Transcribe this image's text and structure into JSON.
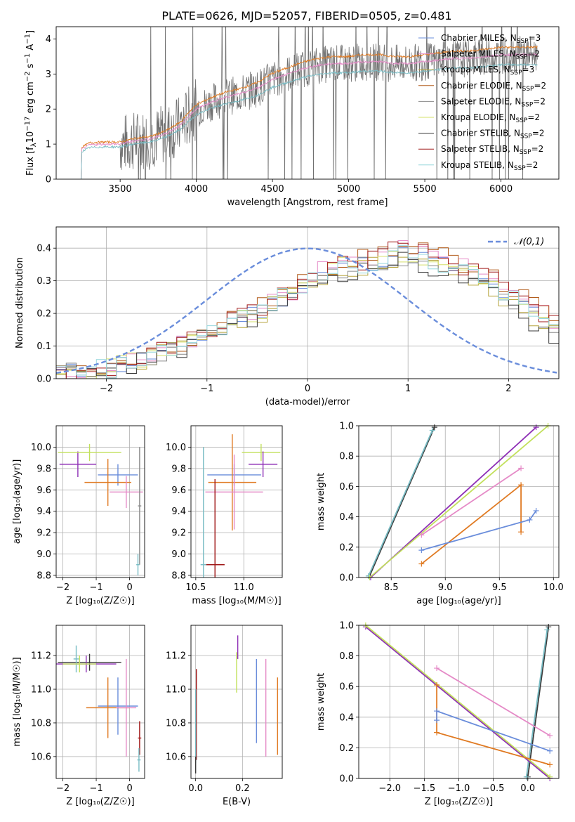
{
  "title": "PLATE=0626, MJD=52057, FIBERID=0505, z=0.481",
  "colors": {
    "Chabrier MILES": "#6a8ddb",
    "Salpeter MILES": "#e58ac7",
    "Kroupa MILES": "#b5a33a",
    "Chabrier ELODIE": "#b25c1c",
    "Salpeter ELODIE": "#8a8a8a",
    "Kroupa ELODIE": "#d5e06a",
    "Chabrier STELIB": "#3a3a3a",
    "Salpeter STELIB": "#a01818",
    "Kroupa STELIB": "#94d6dc",
    "orange": "#e07a22",
    "purple": "#8e2fb6",
    "lime": "#c2e05c",
    "teal": "#78bcc4",
    "data": "#707070"
  },
  "chart_data": [
    {
      "id": "spectrum",
      "type": "line",
      "xlabel": "wavelength [Angstrom, rest frame]",
      "ylabel_main": "Flux [f",
      "ylabel_sub": "λ",
      "ylabel_rest": "10",
      "ylabel_exp": "−17",
      "ylabel_tail": " erg cm",
      "ylabel_exp2": "−2",
      "ylabel_tail2": " s",
      "ylabel_exp3": "−1",
      "ylabel_tail3": " A",
      "ylabel_exp4": "−1",
      "ylabel_end": "]",
      "xlim": [
        3080,
        6380
      ],
      "ylim": [
        0,
        4.35
      ],
      "xticks": [
        3500,
        4000,
        4500,
        5000,
        5500,
        6000
      ],
      "yticks": [
        0,
        1,
        2,
        3,
        4
      ],
      "legend_placement": "right",
      "legend": [
        {
          "pre": "Chabrier MILES, N",
          "sub": "SSP",
          "post": "=3",
          "color": "#6a8ddb"
        },
        {
          "pre": "Salpeter MILES, N",
          "sub": "SSP",
          "post": "=2",
          "color": "#e58ac7"
        },
        {
          "pre": "Kroupa MILES, N",
          "sub": "SSP",
          "post": "=3",
          "color": "#b5a33a"
        },
        {
          "pre": "Chabrier ELODIE, N",
          "sub": "SSP",
          "post": "=2",
          "color": "#b25c1c"
        },
        {
          "pre": "Salpeter ELODIE, N",
          "sub": "SSP",
          "post": "=2",
          "color": "#8a8a8a"
        },
        {
          "pre": "Kroupa ELODIE, N",
          "sub": "SSP",
          "post": "=2",
          "color": "#d5e06a"
        },
        {
          "pre": "Chabrier STELIB, N",
          "sub": "SSP",
          "post": "=2",
          "color": "#3a3a3a"
        },
        {
          "pre": "Salpeter STELIB, N",
          "sub": "SSP",
          "post": "=2",
          "color": "#a01818"
        },
        {
          "pre": "Kroupa STELIB, N",
          "sub": "SSP",
          "post": "=2",
          "color": "#94d6dc"
        }
      ],
      "model_continuum": [
        [
          3240,
          0
        ],
        [
          3245,
          0.85
        ],
        [
          3300,
          0.98
        ],
        [
          3400,
          1.0
        ],
        [
          3500,
          1.0
        ],
        [
          3600,
          1.1
        ],
        [
          3700,
          1.15
        ],
        [
          3800,
          1.3
        ],
        [
          3900,
          1.55
        ],
        [
          3950,
          1.8
        ],
        [
          4000,
          2.0
        ],
        [
          4100,
          2.2
        ],
        [
          4200,
          2.35
        ],
        [
          4300,
          2.45
        ],
        [
          4400,
          2.6
        ],
        [
          4500,
          2.85
        ],
        [
          4600,
          3.0
        ],
        [
          4700,
          3.15
        ],
        [
          4800,
          3.25
        ],
        [
          4900,
          3.3
        ],
        [
          5000,
          3.3
        ],
        [
          5100,
          3.35
        ],
        [
          5200,
          3.35
        ],
        [
          5300,
          3.3
        ],
        [
          5400,
          3.3
        ],
        [
          5500,
          3.35
        ],
        [
          5600,
          3.4
        ],
        [
          5700,
          3.45
        ],
        [
          5800,
          3.45
        ],
        [
          5900,
          3.5
        ],
        [
          6000,
          3.55
        ],
        [
          6100,
          3.55
        ],
        [
          6240,
          3.55
        ]
      ],
      "model_scales": {
        "upper": 1.06,
        "lower": 0.92
      },
      "data_range": [
        3500,
        6240
      ]
    },
    {
      "id": "residuals",
      "type": "bar",
      "xlabel": "(data-model)/error",
      "ylabel": "Normed distribution",
      "xlim": [
        -2.5,
        2.5
      ],
      "ylim": [
        0,
        0.465
      ],
      "xticks": [
        -2,
        -1,
        0,
        1,
        2
      ],
      "yticks": [
        0.0,
        0.1,
        0.2,
        0.3,
        0.4
      ],
      "legend_label": "𝒩(0,1)",
      "legend_placement": "top-right",
      "bin_width": 0.1,
      "base_histogram": [
        0.02,
        0.02,
        0.02,
        0.02,
        0.03,
        0.03,
        0.04,
        0.05,
        0.06,
        0.07,
        0.08,
        0.09,
        0.1,
        0.12,
        0.13,
        0.15,
        0.16,
        0.18,
        0.19,
        0.2,
        0.21,
        0.23,
        0.25,
        0.26,
        0.28,
        0.3,
        0.32,
        0.33,
        0.34,
        0.35,
        0.35,
        0.36,
        0.37,
        0.38,
        0.38,
        0.38,
        0.37,
        0.36,
        0.35,
        0.34,
        0.33,
        0.31,
        0.3,
        0.28,
        0.26,
        0.24,
        0.22,
        0.2,
        0.18,
        0.16
      ],
      "series_offsets": [
        0.0,
        0.02,
        -0.02,
        0.03,
        -0.01,
        0.01,
        -0.03,
        0.02,
        0.0
      ]
    },
    {
      "id": "age-Z",
      "type": "scatter",
      "xlabel": "Z [log₁₀(Z/Z☉)]",
      "ylabel": "age  [log₁₀(age/yr)]",
      "xlim": [
        -2.2,
        0.45
      ],
      "ylim": [
        8.78,
        10.2
      ],
      "xticks": [
        -2,
        -1,
        0
      ],
      "yticks": [
        8.8,
        9.0,
        9.2,
        9.4,
        9.6,
        9.8,
        10.0
      ],
      "points": [
        {
          "x": -1.55,
          "y": 9.84,
          "dx": 0.55,
          "dy": 0.12,
          "color": "#8e2fb6"
        },
        {
          "x": -1.2,
          "y": 9.95,
          "dx": 0.95,
          "dy": 0.08,
          "color": "#c2e05c"
        },
        {
          "x": -0.35,
          "y": 9.74,
          "dx": 0.6,
          "dy": 0.1,
          "color": "#6a8ddb"
        },
        {
          "x": -0.65,
          "y": 9.67,
          "dx": 0.7,
          "dy": 0.22,
          "color": "#e07a22"
        },
        {
          "x": -0.1,
          "y": 9.58,
          "dx": 0.5,
          "dy": 0.15,
          "color": "#e58ac7"
        },
        {
          "x": 0.3,
          "y": 9.45,
          "dx": 0.05,
          "dy": 0.55,
          "color": "#8a8a8a"
        },
        {
          "x": 0.25,
          "y": 8.9,
          "dx": 0.05,
          "dy": 0.1,
          "color": "#78bcc4"
        }
      ]
    },
    {
      "id": "age-mass",
      "type": "scatter",
      "xlabel": "mass [log₁₀(M/M☉)]",
      "xlim": [
        10.45,
        11.4
      ],
      "ylim": [
        8.78,
        10.2
      ],
      "xticks": [
        10.5,
        11.0
      ],
      "yticks": [
        8.8,
        9.0,
        9.2,
        9.4,
        9.6,
        9.8,
        10.0
      ],
      "points": [
        {
          "x": 11.18,
          "y": 9.95,
          "dx": 0.2,
          "dy": 0.08,
          "color": "#c2e05c"
        },
        {
          "x": 11.2,
          "y": 9.84,
          "dx": 0.15,
          "dy": 0.12,
          "color": "#8e2fb6"
        },
        {
          "x": 10.9,
          "y": 9.74,
          "dx": 0.28,
          "dy": 0.1,
          "color": "#6a8ddb"
        },
        {
          "x": 10.88,
          "y": 9.67,
          "dx": 0.25,
          "dy": 0.45,
          "color": "#e07a22"
        },
        {
          "x": 10.9,
          "y": 9.58,
          "dx": 0.3,
          "dy": 0.35,
          "color": "#e58ac7"
        },
        {
          "x": 10.7,
          "y": 8.9,
          "dx": 0.1,
          "dy": 0.8,
          "color": "#a01818"
        },
        {
          "x": 10.58,
          "y": 8.9,
          "dx": 0.03,
          "dy": 1.1,
          "color": "#78bcc4"
        }
      ]
    },
    {
      "id": "weight-age",
      "type": "line",
      "xlabel": "age  [log₁₀(age/yr)]",
      "ylabel": "mass weight",
      "xlim": [
        8.2,
        10.05
      ],
      "ylim": [
        0,
        1.0
      ],
      "xticks": [
        8.5,
        9.0,
        9.5,
        10.0
      ],
      "yticks": [
        0.0,
        0.2,
        0.4,
        0.6,
        0.8,
        1.0
      ],
      "series": [
        {
          "color": "#3a3a3a",
          "x": [
            8.3,
            8.9
          ],
          "y": [
            0.01,
            0.99
          ]
        },
        {
          "color": "#78bcc4",
          "x": [
            8.29,
            8.88
          ],
          "y": [
            0.01,
            0.97
          ]
        },
        {
          "color": "#8e2fb6",
          "x": [
            8.31,
            9.84
          ],
          "y": [
            0.0,
            0.99
          ]
        },
        {
          "color": "#c2e05c",
          "x": [
            8.3,
            9.95
          ],
          "y": [
            0.0,
            1.0
          ]
        },
        {
          "color": "#e58ac7",
          "x": [
            8.78,
            9.7
          ],
          "y": [
            0.28,
            0.72
          ]
        },
        {
          "color": "#e07a22",
          "x": [
            8.78,
            9.7,
            9.7
          ],
          "y": [
            0.09,
            0.61,
            0.3
          ]
        },
        {
          "color": "#6a8ddb",
          "x": [
            8.78,
            9.78,
            9.84
          ],
          "y": [
            0.18,
            0.38,
            0.44
          ]
        }
      ]
    },
    {
      "id": "mass-Z",
      "type": "scatter",
      "xlabel": "Z [log₁₀(Z/Z☉)]",
      "ylabel": "mass [log₁₀(M/M☉)]",
      "xlim": [
        -2.2,
        0.45
      ],
      "ylim": [
        10.47,
        11.38
      ],
      "xticks": [
        -2,
        -1,
        0
      ],
      "yticks": [
        10.6,
        10.8,
        11.0,
        11.2
      ],
      "points": [
        {
          "x": -1.2,
          "y": 11.16,
          "dx": 0.95,
          "dy": 0.05,
          "color": "#3a3a3a"
        },
        {
          "x": -1.3,
          "y": 11.15,
          "dx": 0.9,
          "dy": 0.05,
          "color": "#8e2fb6"
        },
        {
          "x": -1.6,
          "y": 11.18,
          "dx": 0.08,
          "dy": 0.08,
          "color": "#78bcc4"
        },
        {
          "x": -1.5,
          "y": 11.15,
          "dx": 0.5,
          "dy": 0.05,
          "color": "#c2e05c"
        },
        {
          "x": -0.35,
          "y": 10.9,
          "dx": 0.6,
          "dy": 0.17,
          "color": "#6a8ddb"
        },
        {
          "x": -0.65,
          "y": 10.89,
          "dx": 0.65,
          "dy": 0.18,
          "color": "#e07a22"
        },
        {
          "x": -0.1,
          "y": 10.89,
          "dx": 0.3,
          "dy": 0.29,
          "color": "#e58ac7"
        },
        {
          "x": 0.3,
          "y": 10.71,
          "dx": 0.05,
          "dy": 0.1,
          "color": "#a01818"
        },
        {
          "x": 0.28,
          "y": 10.58,
          "dx": 0.05,
          "dy": 0.07,
          "color": "#78bcc4"
        }
      ]
    },
    {
      "id": "mass-EBV",
      "type": "scatter",
      "xlabel": "E(B-V)",
      "xlim": [
        -0.02,
        0.37
      ],
      "ylim": [
        10.47,
        11.38
      ],
      "xticks": [
        0.0,
        0.2
      ],
      "yticks": [
        10.6,
        10.8,
        11.0,
        11.2
      ],
      "points": [
        {
          "x": 0.18,
          "y": 11.25,
          "dx": 0,
          "dy": 0.07,
          "color": "#8e2fb6"
        },
        {
          "x": 0.175,
          "y": 11.1,
          "dx": 0,
          "dy": 0.12,
          "color": "#c2e05c"
        },
        {
          "x": 0.26,
          "y": 10.93,
          "dx": 0,
          "dy": 0.25,
          "color": "#6a8ddb"
        },
        {
          "x": 0.3,
          "y": 10.89,
          "dx": 0,
          "dy": 0.29,
          "color": "#e58ac7"
        },
        {
          "x": 0.35,
          "y": 10.84,
          "dx": 0,
          "dy": 0.23,
          "color": "#e07a22"
        },
        {
          "x": 0.003,
          "y": 10.85,
          "dx": 0,
          "dy": 0.27,
          "color": "#a01818"
        },
        {
          "x": 0.0,
          "y": 10.78,
          "dx": 0,
          "dy": 0.22,
          "color": "#78bcc4"
        },
        {
          "x": 0.0,
          "y": 10.55,
          "dx": 0,
          "dy": 0.05,
          "color": "#3a3a3a"
        }
      ]
    },
    {
      "id": "weight-Z",
      "type": "line",
      "xlabel": "Z [log₁₀(Z/Z☉)]",
      "ylabel": "mass weight",
      "xlim": [
        -2.45,
        0.45
      ],
      "ylim": [
        0,
        1.0
      ],
      "xticks": [
        -2.0,
        -1.5,
        -1.0,
        -0.5,
        0.0
      ],
      "yticks": [
        0.0,
        0.2,
        0.4,
        0.6,
        0.8,
        1.0
      ],
      "series": [
        {
          "color": "#3a3a3a",
          "x": [
            0.0,
            0.3
          ],
          "y": [
            0.01,
            0.99
          ]
        },
        {
          "color": "#78bcc4",
          "x": [
            -0.02,
            0.28
          ],
          "y": [
            0.01,
            0.97
          ]
        },
        {
          "color": "#8e2fb6",
          "x": [
            -2.35,
            0.32
          ],
          "y": [
            0.99,
            0.0
          ]
        },
        {
          "color": "#c2e05c",
          "x": [
            -2.35,
            0.32
          ],
          "y": [
            1.0,
            0.01
          ]
        },
        {
          "color": "#e58ac7",
          "x": [
            -1.32,
            0.32
          ],
          "y": [
            0.72,
            0.28
          ]
        },
        {
          "color": "#e07a22",
          "x": [
            -1.32,
            -1.32,
            0.32
          ],
          "y": [
            0.61,
            0.3,
            0.09
          ]
        },
        {
          "color": "#6a8ddb",
          "x": [
            -1.32,
            -1.32,
            0.32
          ],
          "y": [
            0.38,
            0.44,
            0.18
          ]
        }
      ]
    }
  ]
}
